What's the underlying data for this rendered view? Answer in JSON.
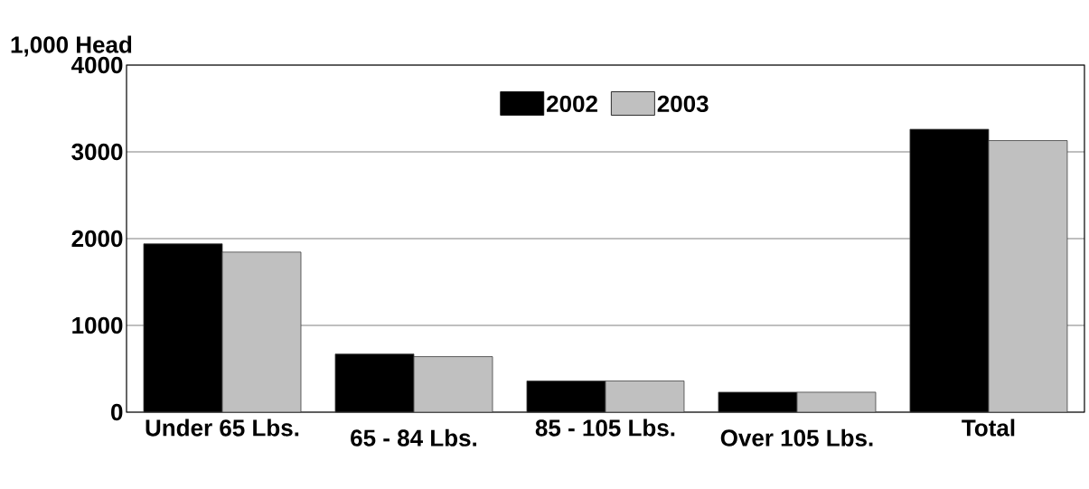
{
  "chart_data": {
    "type": "bar",
    "ylabel": "1,000 Head",
    "categories": [
      "Under 65 Lbs.",
      "65 - 84 Lbs.",
      "85 - 105 Lbs.",
      "Over 105 Lbs.",
      "Total"
    ],
    "series": [
      {
        "name": "2002",
        "color": "#000000",
        "values": [
          1940,
          670,
          360,
          230,
          3260
        ]
      },
      {
        "name": "2003",
        "color": "#c0c0c0",
        "values": [
          1845,
          640,
          360,
          230,
          3130
        ]
      }
    ],
    "ylim": [
      0,
      4000
    ],
    "yticks": [
      0,
      1000,
      2000,
      3000,
      4000
    ],
    "grid": "y",
    "legend": "top"
  }
}
